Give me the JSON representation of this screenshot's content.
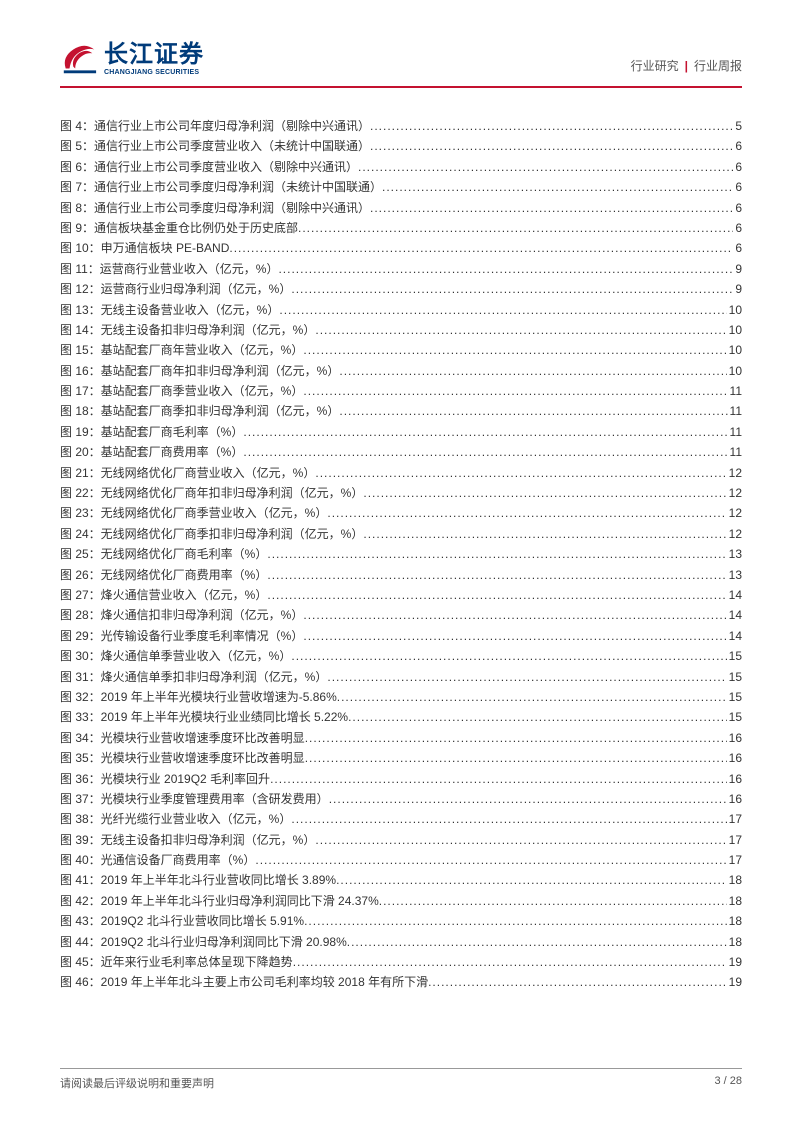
{
  "header": {
    "logo_cn": "长江证券",
    "logo_en": "CHANGJIANG SECURITIES",
    "breadcrumb_left": "行业研究",
    "breadcrumb_right": "行业周报"
  },
  "toc": {
    "prefix": "图",
    "items": [
      {
        "num": "4",
        "title": "通信行业上市公司年度归母净利润（剔除中兴通讯）",
        "page": "5"
      },
      {
        "num": "5",
        "title": "通信行业上市公司季度营业收入（未统计中国联通）",
        "page": "6"
      },
      {
        "num": "6",
        "title": "通信行业上市公司季度营业收入（剔除中兴通讯）",
        "page": "6"
      },
      {
        "num": "7",
        "title": "通信行业上市公司季度归母净利润（未统计中国联通）",
        "page": "6"
      },
      {
        "num": "8",
        "title": "通信行业上市公司季度归母净利润（剔除中兴通讯）",
        "page": "6"
      },
      {
        "num": "9",
        "title": "通信板块基金重仓比例仍处于历史底部",
        "page": "6"
      },
      {
        "num": "10",
        "title": "申万通信板块 PE-BAND",
        "page": "6"
      },
      {
        "num": "11",
        "title": "运营商行业营业收入（亿元，%）",
        "page": "9"
      },
      {
        "num": "12",
        "title": "运营商行业归母净利润（亿元，%）",
        "page": "9"
      },
      {
        "num": "13",
        "title": "无线主设备营业收入（亿元，%）",
        "page": "10"
      },
      {
        "num": "14",
        "title": "无线主设备扣非归母净利润（亿元，%）",
        "page": "10"
      },
      {
        "num": "15",
        "title": "基站配套厂商年营业收入（亿元，%）",
        "page": "10"
      },
      {
        "num": "16",
        "title": "基站配套厂商年扣非归母净利润（亿元，%）",
        "page": "10"
      },
      {
        "num": "17",
        "title": "基站配套厂商季营业收入（亿元，%）",
        "page": "11"
      },
      {
        "num": "18",
        "title": "基站配套厂商季扣非归母净利润（亿元，%）",
        "page": "11"
      },
      {
        "num": "19",
        "title": "基站配套厂商毛利率（%）",
        "page": "11"
      },
      {
        "num": "20",
        "title": "基站配套厂商费用率（%）",
        "page": "11"
      },
      {
        "num": "21",
        "title": "无线网络优化厂商营业收入（亿元，%）",
        "page": "12"
      },
      {
        "num": "22",
        "title": "无线网络优化厂商年扣非归母净利润（亿元，%）",
        "page": "12"
      },
      {
        "num": "23",
        "title": "无线网络优化厂商季营业收入（亿元，%）",
        "page": "12"
      },
      {
        "num": "24",
        "title": "无线网络优化厂商季扣非归母净利润（亿元，%）",
        "page": "12"
      },
      {
        "num": "25",
        "title": "无线网络优化厂商毛利率（%）",
        "page": "13"
      },
      {
        "num": "26",
        "title": "无线网络优化厂商费用率（%）",
        "page": "13"
      },
      {
        "num": "27",
        "title": "烽火通信营业收入（亿元，%）",
        "page": "14"
      },
      {
        "num": "28",
        "title": "烽火通信扣非归母净利润（亿元，%）",
        "page": "14"
      },
      {
        "num": "29",
        "title": "光传输设备行业季度毛利率情况（%）",
        "page": "14"
      },
      {
        "num": "30",
        "title": "烽火通信单季营业收入（亿元，%）",
        "page": "15"
      },
      {
        "num": "31",
        "title": "烽火通信单季扣非归母净利润（亿元，%）",
        "page": "15"
      },
      {
        "num": "32",
        "title": "2019 年上半年光模块行业营收增速为-5.86%",
        "page": "15"
      },
      {
        "num": "33",
        "title": "2019 年上半年光模块行业业绩同比增长 5.22%",
        "page": "15"
      },
      {
        "num": "34",
        "title": "光模块行业营收增速季度环比改善明显",
        "page": "16"
      },
      {
        "num": "35",
        "title": "光模块行业营收增速季度环比改善明显",
        "page": "16"
      },
      {
        "num": "36",
        "title": "光模块行业 2019Q2 毛利率回升",
        "page": "16"
      },
      {
        "num": "37",
        "title": "光模块行业季度管理费用率（含研发费用）",
        "page": "16"
      },
      {
        "num": "38",
        "title": "光纤光缆行业营业收入（亿元，%）",
        "page": "17"
      },
      {
        "num": "39",
        "title": "无线主设备扣非归母净利润（亿元，%）",
        "page": "17"
      },
      {
        "num": "40",
        "title": "光通信设备厂商费用率（%）",
        "page": "17"
      },
      {
        "num": "41",
        "title": "2019 年上半年北斗行业营收同比增长 3.89%",
        "page": "18"
      },
      {
        "num": "42",
        "title": "2019 年上半年北斗行业归母净利润同比下滑 24.37%",
        "page": "18"
      },
      {
        "num": "43",
        "title": "2019Q2 北斗行业营收同比增长 5.91%",
        "page": "18"
      },
      {
        "num": "44",
        "title": "2019Q2 北斗行业归母净利润同比下滑 20.98%",
        "page": "18"
      },
      {
        "num": "45",
        "title": "近年来行业毛利率总体呈现下降趋势",
        "page": "19"
      },
      {
        "num": "46",
        "title": "2019 年上半年北斗主要上市公司毛利率均较 2018 年有所下滑",
        "page": "19"
      }
    ]
  },
  "footer": {
    "disclaimer": "请阅读最后评级说明和重要声明",
    "page_current": "3",
    "page_sep": " / ",
    "page_total": "28"
  },
  "colors": {
    "brand_red": "#c41230",
    "brand_blue": "#003b7a",
    "text": "#333333",
    "muted": "#555555",
    "rule": "#999999",
    "background": "#ffffff"
  }
}
